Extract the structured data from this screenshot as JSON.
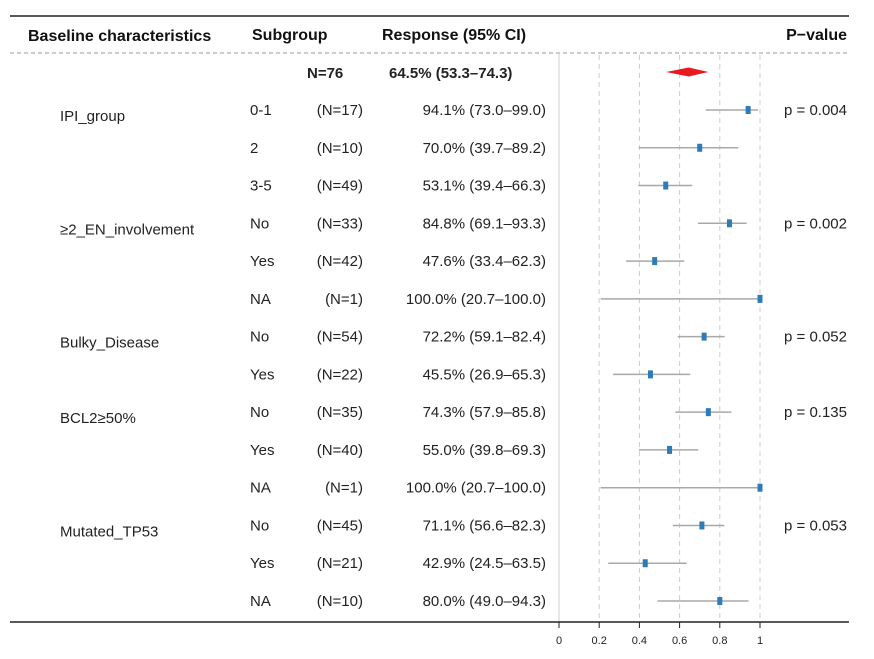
{
  "chart_data": {
    "type": "forest",
    "headers": {
      "characteristic": "Baseline characteristics",
      "subgroup": "Subgroup",
      "response": "Response (95% CI)",
      "pvalue": "P−value"
    },
    "overall": {
      "n_label": "N=76",
      "response_label": "64.5% (53.3–74.3)",
      "estimate": 0.645,
      "lower": 0.533,
      "upper": 0.743
    },
    "rows": [
      {
        "characteristic": "IPI_group",
        "subgroup": "0-1",
        "n_label": "(N=17)",
        "response_label": "94.1% (73.0–99.0)",
        "estimate": 0.941,
        "lower": 0.73,
        "upper": 0.99,
        "pvalue": "p = 0.004"
      },
      {
        "characteristic": "",
        "subgroup": "2",
        "n_label": "(N=10)",
        "response_label": "70.0% (39.7–89.2)",
        "estimate": 0.7,
        "lower": 0.397,
        "upper": 0.892,
        "pvalue": ""
      },
      {
        "characteristic": "",
        "subgroup": "3-5",
        "n_label": "(N=49)",
        "response_label": "53.1% (39.4–66.3)",
        "estimate": 0.531,
        "lower": 0.394,
        "upper": 0.663,
        "pvalue": ""
      },
      {
        "characteristic": "≥2_EN_involvement",
        "subgroup": "No",
        "n_label": "(N=33)",
        "response_label": "84.8% (69.1–93.3)",
        "estimate": 0.848,
        "lower": 0.691,
        "upper": 0.933,
        "pvalue": "p = 0.002"
      },
      {
        "characteristic": "",
        "subgroup": "Yes",
        "n_label": "(N=42)",
        "response_label": "47.6% (33.4–62.3)",
        "estimate": 0.476,
        "lower": 0.334,
        "upper": 0.623,
        "pvalue": ""
      },
      {
        "characteristic": "",
        "subgroup": "NA",
        "n_label": "(N=1)",
        "response_label": "100.0% (20.7–100.0)",
        "estimate": 1.0,
        "lower": 0.207,
        "upper": 1.0,
        "pvalue": ""
      },
      {
        "characteristic": "Bulky_Disease",
        "subgroup": "No",
        "n_label": "(N=54)",
        "response_label": "72.2% (59.1–82.4)",
        "estimate": 0.722,
        "lower": 0.591,
        "upper": 0.824,
        "pvalue": "p = 0.052"
      },
      {
        "characteristic": "",
        "subgroup": "Yes",
        "n_label": "(N=22)",
        "response_label": "45.5% (26.9–65.3)",
        "estimate": 0.455,
        "lower": 0.269,
        "upper": 0.653,
        "pvalue": ""
      },
      {
        "characteristic": "BCL2≥50%",
        "subgroup": "No",
        "n_label": "(N=35)",
        "response_label": "74.3% (57.9–85.8)",
        "estimate": 0.743,
        "lower": 0.579,
        "upper": 0.858,
        "pvalue": "p = 0.135"
      },
      {
        "characteristic": "",
        "subgroup": "Yes",
        "n_label": "(N=40)",
        "response_label": "55.0% (39.8–69.3)",
        "estimate": 0.55,
        "lower": 0.398,
        "upper": 0.693,
        "pvalue": ""
      },
      {
        "characteristic": "",
        "subgroup": "NA",
        "n_label": "(N=1)",
        "response_label": "100.0% (20.7–100.0)",
        "estimate": 1.0,
        "lower": 0.207,
        "upper": 1.0,
        "pvalue": ""
      },
      {
        "characteristic": "Mutated_TP53",
        "subgroup": "No",
        "n_label": "(N=45)",
        "response_label": "71.1% (56.6–82.3)",
        "estimate": 0.711,
        "lower": 0.566,
        "upper": 0.823,
        "pvalue": "p = 0.053"
      },
      {
        "characteristic": "",
        "subgroup": "Yes",
        "n_label": "(N=21)",
        "response_label": "42.9% (24.5–63.5)",
        "estimate": 0.429,
        "lower": 0.245,
        "upper": 0.635,
        "pvalue": ""
      },
      {
        "characteristic": "",
        "subgroup": "NA",
        "n_label": "(N=10)",
        "response_label": "80.0% (49.0–94.3)",
        "estimate": 0.8,
        "lower": 0.49,
        "upper": 0.943,
        "pvalue": ""
      }
    ],
    "xlim": [
      0,
      1
    ],
    "xticks": [
      0,
      0.2,
      0.4,
      0.6,
      0.8,
      1
    ],
    "xtick_labels": [
      "0",
      "0.2",
      "0.4",
      "0.6",
      "0.8",
      "1"
    ],
    "reference_lines": [
      0.2,
      0.4,
      0.6,
      0.8
    ],
    "colors": {
      "point": "#2f7bb5",
      "ci_line": "#a8a8a8",
      "overall_diamond": "#e8191f",
      "grid": "#cccccc",
      "rule": "#222222"
    }
  }
}
